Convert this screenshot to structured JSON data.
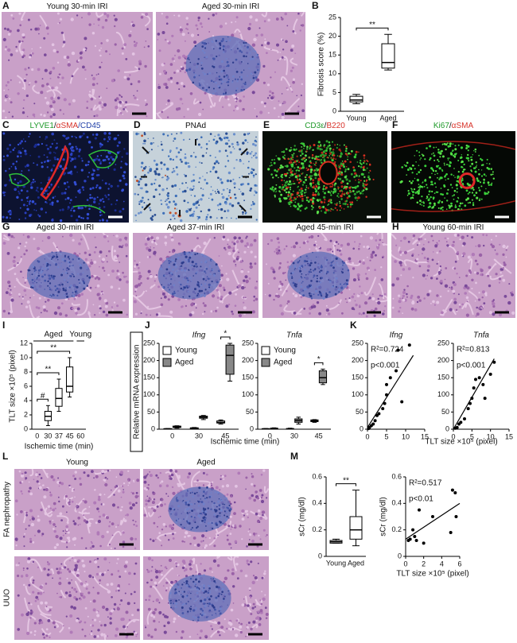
{
  "panel_letters": [
    "A",
    "B",
    "C",
    "D",
    "E",
    "F",
    "G",
    "H",
    "I",
    "J",
    "K",
    "L",
    "M"
  ],
  "images": [
    {
      "label_parts": [
        {
          "text": "Young 30-min IRI"
        }
      ]
    },
    {
      "label_parts": [
        {
          "text": "Aged 30-min IRI"
        }
      ]
    },
    {
      "label_parts": [
        {
          "text": "LYVE1",
          "color": "#1f9a2a"
        },
        {
          "text": "/"
        },
        {
          "text": "αSMA",
          "color": "#d8332a"
        },
        {
          "text": "/CD45",
          "color": "#2140a8"
        }
      ]
    },
    {
      "label_parts": [
        {
          "text": "PNAd"
        }
      ]
    },
    {
      "label_parts": [
        {
          "text": "CD3ε",
          "color": "#1f9a2a"
        },
        {
          "text": "/"
        },
        {
          "text": "B220",
          "color": "#d8332a"
        }
      ]
    },
    {
      "label_parts": [
        {
          "text": "Ki67",
          "color": "#1f9a2a"
        },
        {
          "text": "/"
        },
        {
          "text": "αSMA",
          "color": "#d8332a"
        }
      ]
    },
    {
      "label_parts": [
        {
          "text": "Aged 30-min IRI"
        }
      ]
    },
    {
      "label_parts": [
        {
          "text": "Aged 37-min IRI"
        }
      ]
    },
    {
      "label_parts": [
        {
          "text": "Aged 45-min IRI"
        }
      ]
    },
    {
      "label_parts": [
        {
          "text": "Young 60-min IRI"
        }
      ]
    }
  ],
  "panel_J": {
    "ylabel": "Relative mRNA expression",
    "xlabel": "Ischemic time (min)"
  },
  "panel_K": {
    "xlabel": "TLT size ×10⁵ (pixel)"
  },
  "panel_L": {
    "columns": [
      "Young",
      "Aged"
    ],
    "rows": [
      "FA nephropathy",
      "UUO"
    ]
  },
  "chart_data": [
    {
      "type": "box",
      "ylabel": "Fibrosis score (%)",
      "categories": [
        "Young",
        "Aged"
      ],
      "color": "#ffffff",
      "boxes": [
        {
          "min": 2,
          "q1": 2.5,
          "median": 3,
          "q3": 4,
          "max": 4.5
        },
        {
          "min": 11,
          "q1": 11.5,
          "median": 13,
          "q3": 18,
          "max": 20.5
        }
      ],
      "ylim": [
        0,
        25
      ],
      "yticks": [
        0,
        5,
        10,
        15,
        20,
        25
      ],
      "significance": [
        {
          "label": "**",
          "between": [
            "Young",
            "Aged"
          ]
        }
      ]
    },
    {
      "type": "box",
      "ylabel": "TLT size ×10⁵ (pixel)",
      "xlabel": "Ischemic time (min)",
      "categories": [
        "0",
        "30",
        "37",
        "45",
        "60"
      ],
      "color": "#ffffff",
      "boxes": [
        null,
        {
          "min": 0.5,
          "q1": 1.2,
          "median": 1.8,
          "q3": 2.5,
          "max": 3.3
        },
        {
          "min": 2.5,
          "q1": 3.2,
          "median": 4.3,
          "q3": 5.7,
          "max": 7
        },
        {
          "min": 4.5,
          "q1": 5.2,
          "median": 6,
          "q3": 8.7,
          "max": 10
        },
        null
      ],
      "ylim": [
        0,
        12
      ],
      "yticks": [
        0,
        2,
        4,
        6,
        8,
        10,
        12
      ],
      "groups": [
        {
          "label": "Aged",
          "categories": [
            "0",
            "30",
            "37",
            "45"
          ]
        },
        {
          "label": "Young",
          "categories": [
            "60"
          ]
        }
      ],
      "significance": [
        {
          "label": "#",
          "between": [
            "0",
            "30"
          ]
        },
        {
          "label": "**",
          "between": [
            "0",
            "37"
          ]
        },
        {
          "label": "**",
          "between": [
            "0",
            "45"
          ]
        }
      ]
    },
    {
      "type": "box",
      "title": "Ifng",
      "categories": [
        "0",
        "30",
        "45"
      ],
      "series": [
        {
          "name": "Young",
          "color": "#ffffff",
          "boxes": [
            {
              "min": 0,
              "q1": 0.5,
              "median": 1,
              "q3": 1.5,
              "max": 2
            },
            {
              "min": 1,
              "q1": 2,
              "median": 3,
              "q3": 4,
              "max": 5
            },
            {
              "min": 15,
              "q1": 18,
              "median": 20,
              "q3": 24,
              "max": 27
            }
          ]
        },
        {
          "name": "Aged",
          "color": "#888888",
          "boxes": [
            {
              "min": 3,
              "q1": 5,
              "median": 7,
              "q3": 9,
              "max": 10
            },
            {
              "min": 28,
              "q1": 32,
              "median": 35,
              "q3": 38,
              "max": 40
            },
            {
              "min": 140,
              "q1": 160,
              "median": 215,
              "q3": 245,
              "max": 250
            }
          ]
        }
      ],
      "ylim": [
        0,
        250
      ],
      "yticks": [
        0,
        50,
        100,
        150,
        200,
        250
      ],
      "significance": [
        {
          "label": "*",
          "category": "45",
          "between": [
            "Young",
            "Aged"
          ]
        }
      ]
    },
    {
      "type": "box",
      "title": "Tnfa",
      "categories": [
        "0",
        "30",
        "45"
      ],
      "series": [
        {
          "name": "Young",
          "color": "#ffffff",
          "boxes": [
            {
              "min": 0,
              "q1": 0.5,
              "median": 1,
              "q3": 1.5,
              "max": 2
            },
            {
              "min": 0,
              "q1": 0.5,
              "median": 1,
              "q3": 2,
              "max": 3
            },
            {
              "min": 20,
              "q1": 22,
              "median": 25,
              "q3": 27,
              "max": 28
            }
          ]
        },
        {
          "name": "Aged",
          "color": "#888888",
          "boxes": [
            {
              "min": 0,
              "q1": 1,
              "median": 2,
              "q3": 3,
              "max": 4
            },
            {
              "min": 15,
              "q1": 20,
              "median": 25,
              "q3": 30,
              "max": 35
            },
            {
              "min": 130,
              "q1": 135,
              "median": 150,
              "q3": 170,
              "max": 175
            }
          ]
        }
      ],
      "ylim": [
        0,
        250
      ],
      "yticks": [
        0,
        50,
        100,
        150,
        200,
        250
      ],
      "significance": [
        {
          "label": "*",
          "category": "45",
          "between": [
            "Young",
            "Aged"
          ]
        }
      ]
    },
    {
      "type": "scatter",
      "title": "Ifng",
      "x": [
        0.3,
        0.5,
        1,
        1.5,
        2,
        2.5,
        3,
        4,
        4.5,
        5,
        5,
        6,
        7.5,
        8,
        9,
        11
      ],
      "y": [
        2,
        5,
        10,
        15,
        25,
        40,
        45,
        60,
        75,
        100,
        130,
        150,
        170,
        230,
        80,
        245
      ],
      "fit": {
        "x": [
          0,
          12
        ],
        "y": [
          5,
          215
        ]
      },
      "annotations": [
        "R²=0.724",
        "p<0.001"
      ],
      "xlim": [
        0,
        15
      ],
      "xticks": [
        0,
        5,
        10,
        15
      ],
      "ylim": [
        0,
        250
      ],
      "yticks": [
        0,
        50,
        100,
        150,
        200,
        250
      ]
    },
    {
      "type": "scatter",
      "title": "Tnfa",
      "x": [
        0.5,
        1,
        1.5,
        2,
        3,
        4,
        4.5,
        5,
        5.5,
        6,
        7,
        8,
        8.5,
        10,
        11
      ],
      "y": [
        3,
        5,
        15,
        20,
        30,
        60,
        75,
        90,
        120,
        145,
        150,
        130,
        90,
        160,
        195
      ],
      "fit": {
        "x": [
          0,
          11
        ],
        "y": [
          0,
          205
        ]
      },
      "annotations": [
        "R²=0.813",
        "p<0.001"
      ],
      "xlim": [
        0,
        15
      ],
      "xticks": [
        0,
        5,
        10,
        15
      ],
      "ylim": [
        0,
        250
      ],
      "yticks": [
        0,
        50,
        100,
        150,
        200,
        250
      ]
    },
    {
      "type": "box",
      "ylabel": "sCr (mg/dl)",
      "categories": [
        "Young",
        "Aged"
      ],
      "color": "#ffffff",
      "boxes": [
        {
          "min": 0.1,
          "q1": 0.1,
          "median": 0.11,
          "q3": 0.12,
          "max": 0.13
        },
        {
          "min": 0.08,
          "q1": 0.13,
          "median": 0.2,
          "q3": 0.3,
          "max": 0.5
        }
      ],
      "ylim": [
        0,
        0.6
      ],
      "yticks": [
        0,
        0.2,
        0.4,
        0.6
      ],
      "significance": [
        {
          "label": "**",
          "between": [
            "Young",
            "Aged"
          ]
        }
      ]
    },
    {
      "type": "scatter",
      "ylabel": "sCr (mg/dl)",
      "xlabel": "TLT size  ×10⁵ (pixel)",
      "x": [
        0.3,
        0.5,
        0.8,
        1,
        1.2,
        1.5,
        2,
        3,
        5,
        5.2,
        5.5,
        5.6
      ],
      "y": [
        0.12,
        0.13,
        0.2,
        0.15,
        0.12,
        0.35,
        0.1,
        0.3,
        0.18,
        0.5,
        0.48,
        0.3
      ],
      "fit": {
        "x": [
          0,
          6
        ],
        "y": [
          0.13,
          0.4
        ]
      },
      "annotations": [
        "R²=0.517",
        "p<0.01"
      ],
      "xlim": [
        0,
        6
      ],
      "xticks": [
        0,
        2,
        4,
        6
      ],
      "ylim": [
        0,
        0.6
      ],
      "yticks": [
        0,
        0.2,
        0.4,
        0.6
      ]
    }
  ]
}
